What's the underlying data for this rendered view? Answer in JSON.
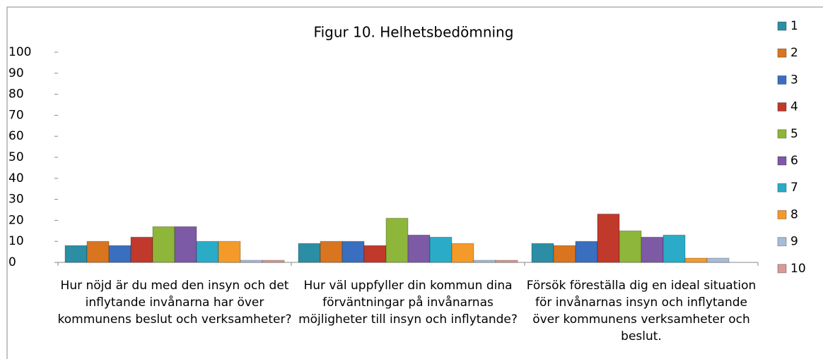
{
  "chart_data": {
    "type": "bar",
    "title": "Figur 10. Helhetsbedömning",
    "categories": [
      "Hur nöjd är du med den insyn och det inflytande invånarna har över kommunens beslut och verksamheter?",
      "Hur väl uppfyller din kommun dina förväntningar på invånarnas möjligheter till insyn och inflytande?",
      "Försök föreställa dig en ideal situation för invånarnas insyn och inflytande över kommunens verksamheter och beslut."
    ],
    "series": [
      {
        "name": "1",
        "color": "#2b8ea5",
        "values": [
          8,
          9,
          9
        ]
      },
      {
        "name": "2",
        "color": "#d9751f",
        "values": [
          10,
          10,
          8
        ]
      },
      {
        "name": "3",
        "color": "#3a6fbf",
        "values": [
          8,
          10,
          10
        ]
      },
      {
        "name": "4",
        "color": "#c0392b",
        "values": [
          12,
          8,
          23
        ]
      },
      {
        "name": "5",
        "color": "#8db63a",
        "values": [
          17,
          21,
          15
        ]
      },
      {
        "name": "6",
        "color": "#7c5aa6",
        "values": [
          17,
          13,
          12
        ]
      },
      {
        "name": "7",
        "color": "#2aacc8",
        "values": [
          10,
          12,
          13
        ]
      },
      {
        "name": "8",
        "color": "#f39a2a",
        "values": [
          10,
          9,
          2
        ]
      },
      {
        "name": "9",
        "color": "#a9bcd6",
        "values": [
          1,
          1,
          2
        ]
      },
      {
        "name": "10",
        "color": "#d99a96",
        "values": [
          1,
          1,
          0
        ]
      }
    ],
    "ylim": [
      0,
      100
    ],
    "yticks": [
      0,
      10,
      20,
      30,
      40,
      50,
      60,
      70,
      80,
      90,
      100
    ],
    "legend": "right"
  }
}
